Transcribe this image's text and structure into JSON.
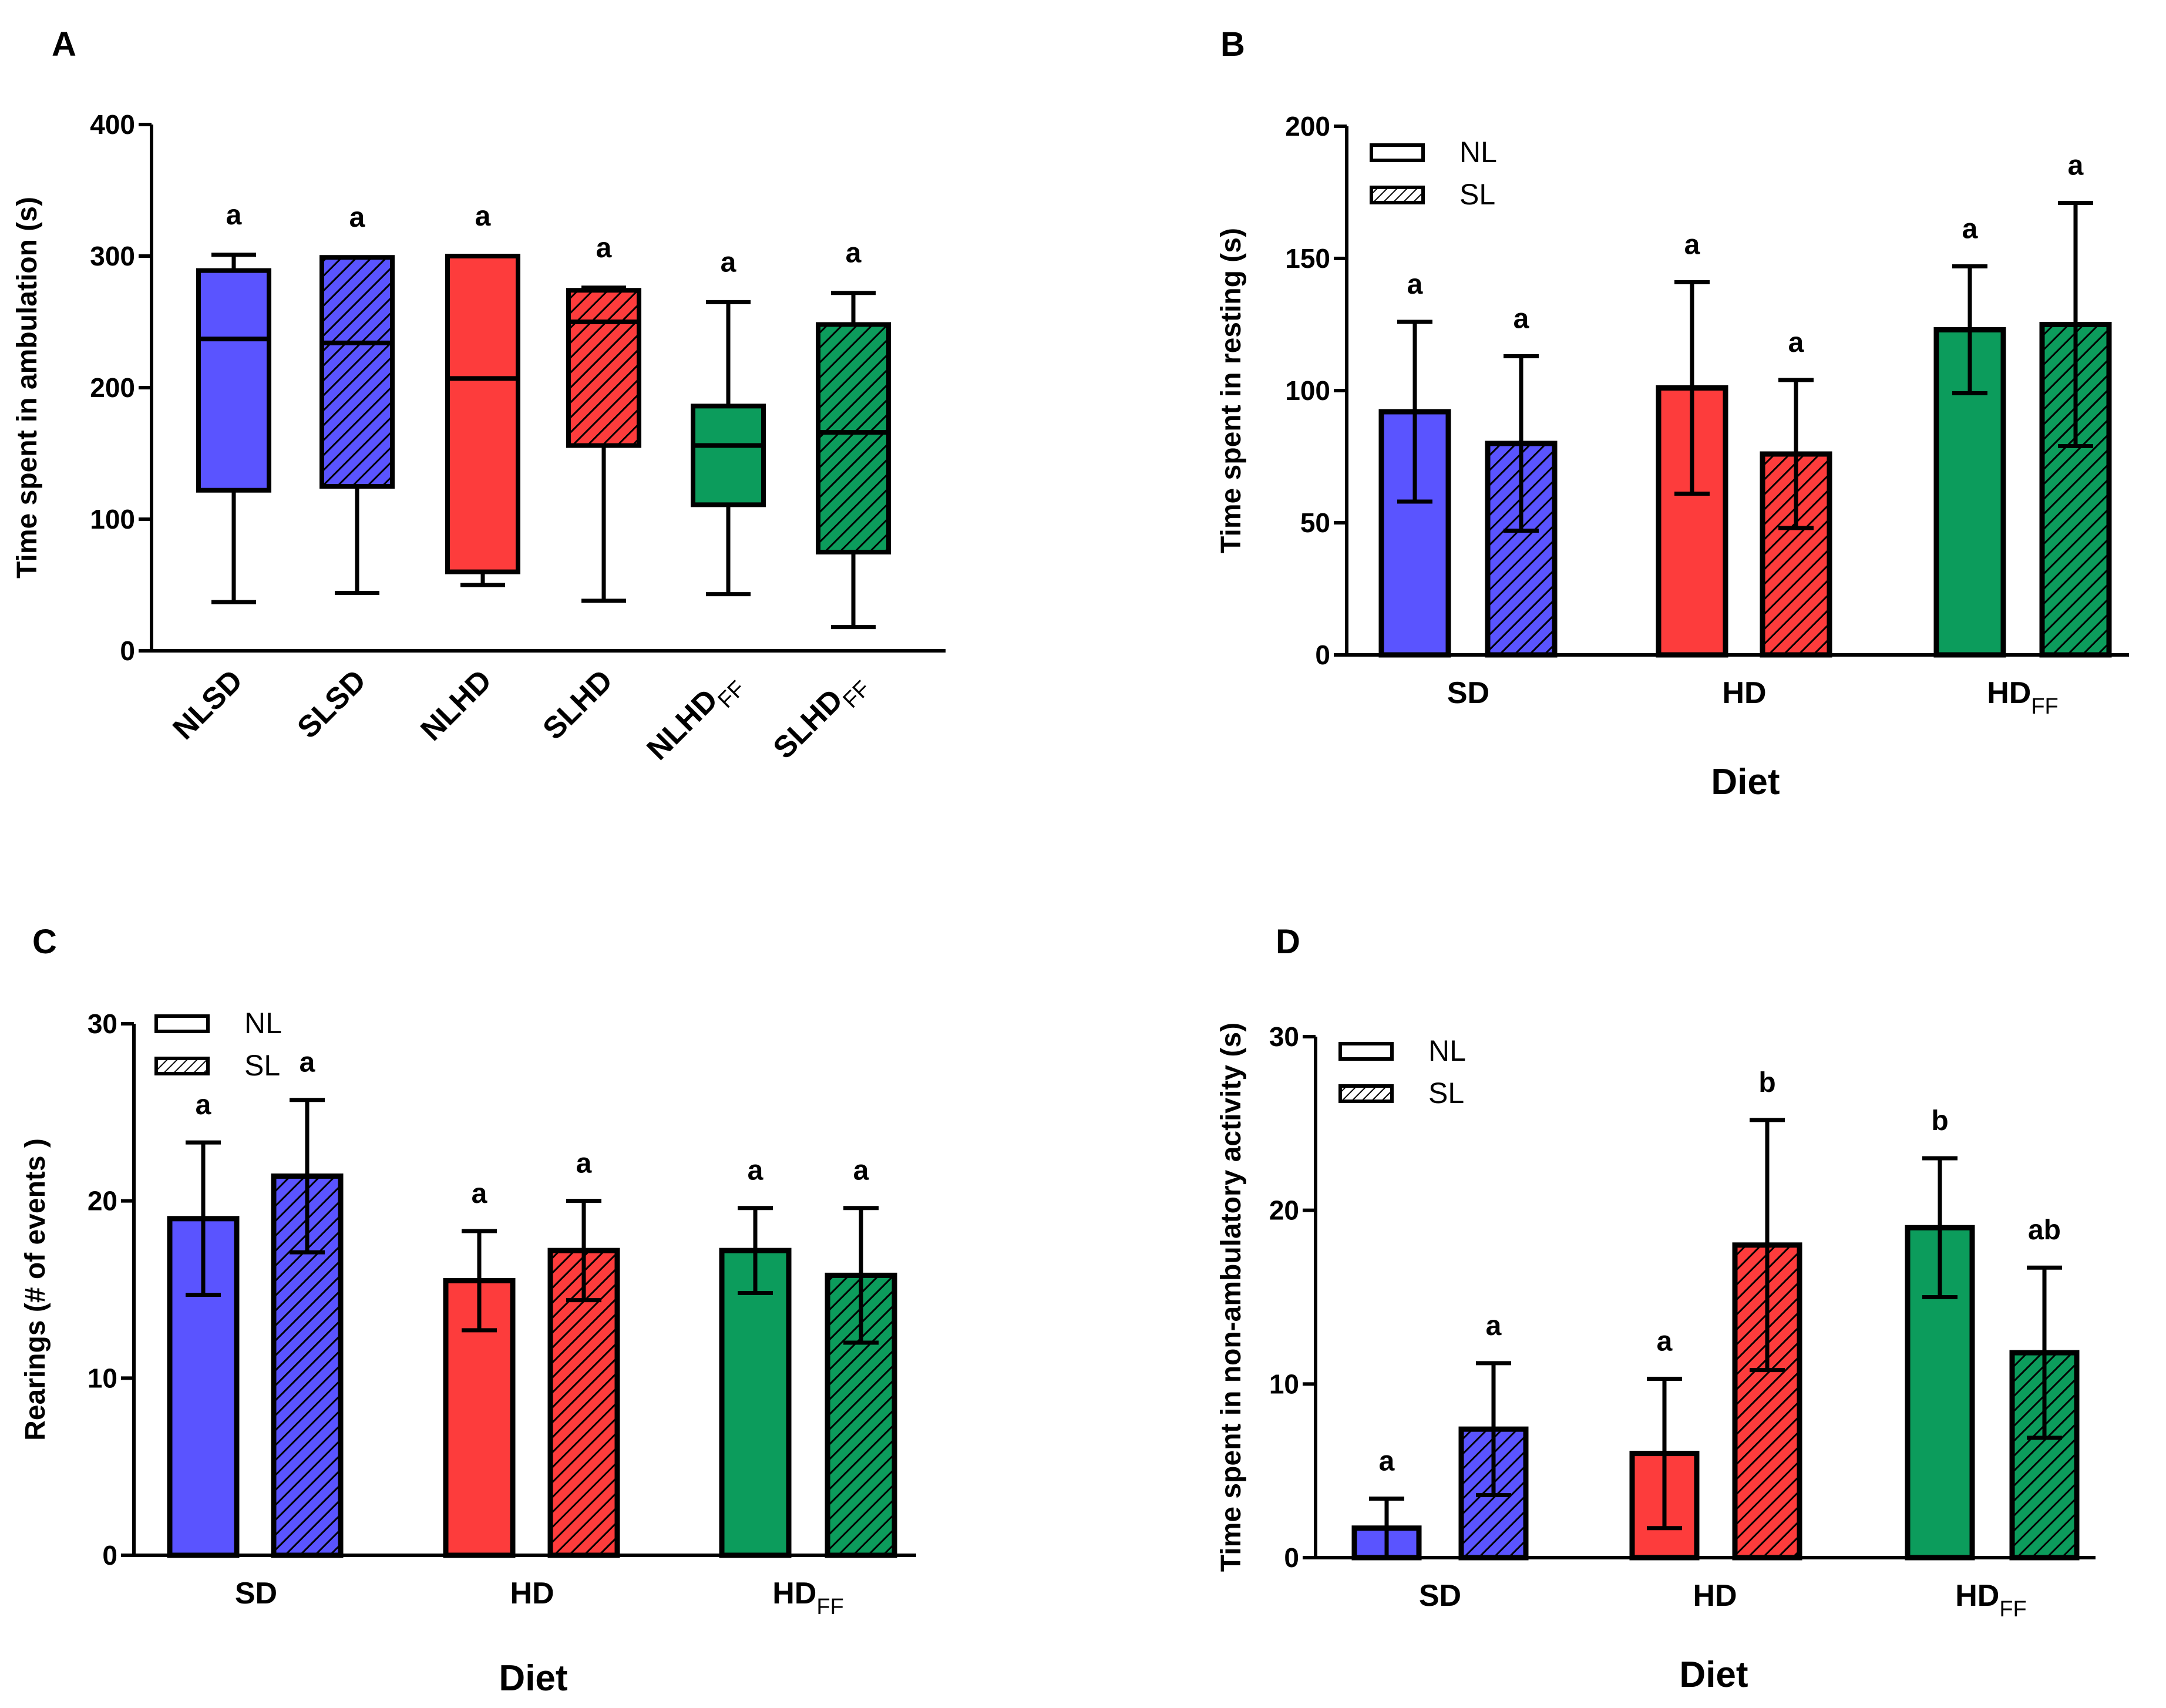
{
  "colors": {
    "SD": "#5a54ff",
    "HD": "#fd3c3c",
    "HDFF": "#0c9c5c",
    "stroke": "#000000"
  },
  "legend": {
    "nl": "NL",
    "sl": "SL"
  },
  "chart_data": [
    {
      "panel": "A",
      "type": "box",
      "title": "",
      "ylabel": "Time spent in ambulation (s)",
      "xlabel": "",
      "ylim": [
        0,
        400
      ],
      "yticks": [
        "0",
        "100",
        "200",
        "300",
        "400"
      ],
      "categories": [
        {
          "main": "NLSD",
          "sub": ""
        },
        {
          "main": "SLSD",
          "sub": ""
        },
        {
          "main": "NLHD",
          "sub": ""
        },
        {
          "main": "SLHD",
          "sub": ""
        },
        {
          "main": "NLHD",
          "sub": "FF"
        },
        {
          "main": "SLHD",
          "sub": "FF"
        }
      ],
      "boxes": [
        {
          "min": 37,
          "q1": 122,
          "median": 237,
          "q3": 289,
          "max": 301,
          "diet": "SD",
          "hatched": false,
          "label": "a"
        },
        {
          "min": 44,
          "q1": 125,
          "median": 234,
          "q3": 299,
          "max": 299,
          "diet": "SD",
          "hatched": true,
          "label": "a"
        },
        {
          "min": 50,
          "q1": 60,
          "median": 207,
          "q3": 300,
          "max": 300,
          "diet": "HD",
          "hatched": false,
          "label": "a"
        },
        {
          "min": 38,
          "q1": 156,
          "median": 250,
          "q3": 274,
          "max": 276,
          "diet": "HD",
          "hatched": true,
          "label": "a"
        },
        {
          "min": 43,
          "q1": 111,
          "median": 156,
          "q3": 186,
          "max": 265,
          "diet": "HDFF",
          "hatched": false,
          "label": "a"
        },
        {
          "min": 18,
          "q1": 75,
          "median": 166,
          "q3": 248,
          "max": 272,
          "diet": "HDFF",
          "hatched": true,
          "label": "a"
        }
      ]
    },
    {
      "panel": "B",
      "type": "bar",
      "title": "",
      "ylabel": "Time spent in resting (s)",
      "xlabel": "Diet",
      "ylim": [
        0,
        200
      ],
      "yticks": [
        "0",
        "50",
        "100",
        "150",
        "200"
      ],
      "groups": [
        {
          "main": "SD",
          "sub": "",
          "diet": "SD"
        },
        {
          "main": "HD",
          "sub": "",
          "diet": "HD"
        },
        {
          "main": "HD",
          "sub": "FF",
          "diet": "HDFF"
        }
      ],
      "series": [
        {
          "name": "NL",
          "values": [
            92,
            101,
            123
          ],
          "errors": [
            34,
            40,
            24
          ],
          "labels": [
            "a",
            "a",
            "a"
          ]
        },
        {
          "name": "SL",
          "values": [
            80,
            76,
            125
          ],
          "errors": [
            33,
            28,
            46
          ],
          "labels": [
            "a",
            "a",
            "a"
          ]
        }
      ]
    },
    {
      "panel": "C",
      "type": "bar",
      "title": "",
      "ylabel": "Rearings (# of events )",
      "xlabel": "Diet",
      "ylim": [
        0,
        30
      ],
      "yticks": [
        "0",
        "10",
        "20",
        "30"
      ],
      "groups": [
        {
          "main": "SD",
          "sub": "",
          "diet": "SD"
        },
        {
          "main": "HD",
          "sub": "",
          "diet": "HD"
        },
        {
          "main": "HD",
          "sub": "FF",
          "diet": "HDFF"
        }
      ],
      "series": [
        {
          "name": "NL",
          "values": [
            19.0,
            15.5,
            17.2
          ],
          "errors": [
            4.3,
            2.8,
            2.4
          ],
          "labels": [
            "a",
            "a",
            "a"
          ]
        },
        {
          "name": "SL",
          "values": [
            21.4,
            17.2,
            15.8
          ],
          "errors": [
            4.3,
            2.8,
            3.8
          ],
          "labels": [
            "a",
            "a",
            "a"
          ]
        }
      ]
    },
    {
      "panel": "D",
      "type": "bar",
      "title": "",
      "ylabel": "Time spent in non-ambulatory activity (s)",
      "xlabel": "Diet",
      "ylim": [
        0,
        30
      ],
      "yticks": [
        "0",
        "10",
        "20",
        "30"
      ],
      "groups": [
        {
          "main": "SD",
          "sub": "",
          "diet": "SD"
        },
        {
          "main": "HD",
          "sub": "",
          "diet": "HD"
        },
        {
          "main": "HD",
          "sub": "FF",
          "diet": "HDFF"
        }
      ],
      "series": [
        {
          "name": "NL",
          "values": [
            1.7,
            6.0,
            19.0
          ],
          "errors": [
            1.7,
            4.3,
            4.0
          ],
          "labels": [
            "a",
            "a",
            "b"
          ]
        },
        {
          "name": "SL",
          "values": [
            7.4,
            18.0,
            11.8
          ],
          "errors": [
            3.8,
            7.2,
            4.9
          ],
          "labels": [
            "a",
            "b",
            "ab"
          ]
        }
      ]
    }
  ]
}
